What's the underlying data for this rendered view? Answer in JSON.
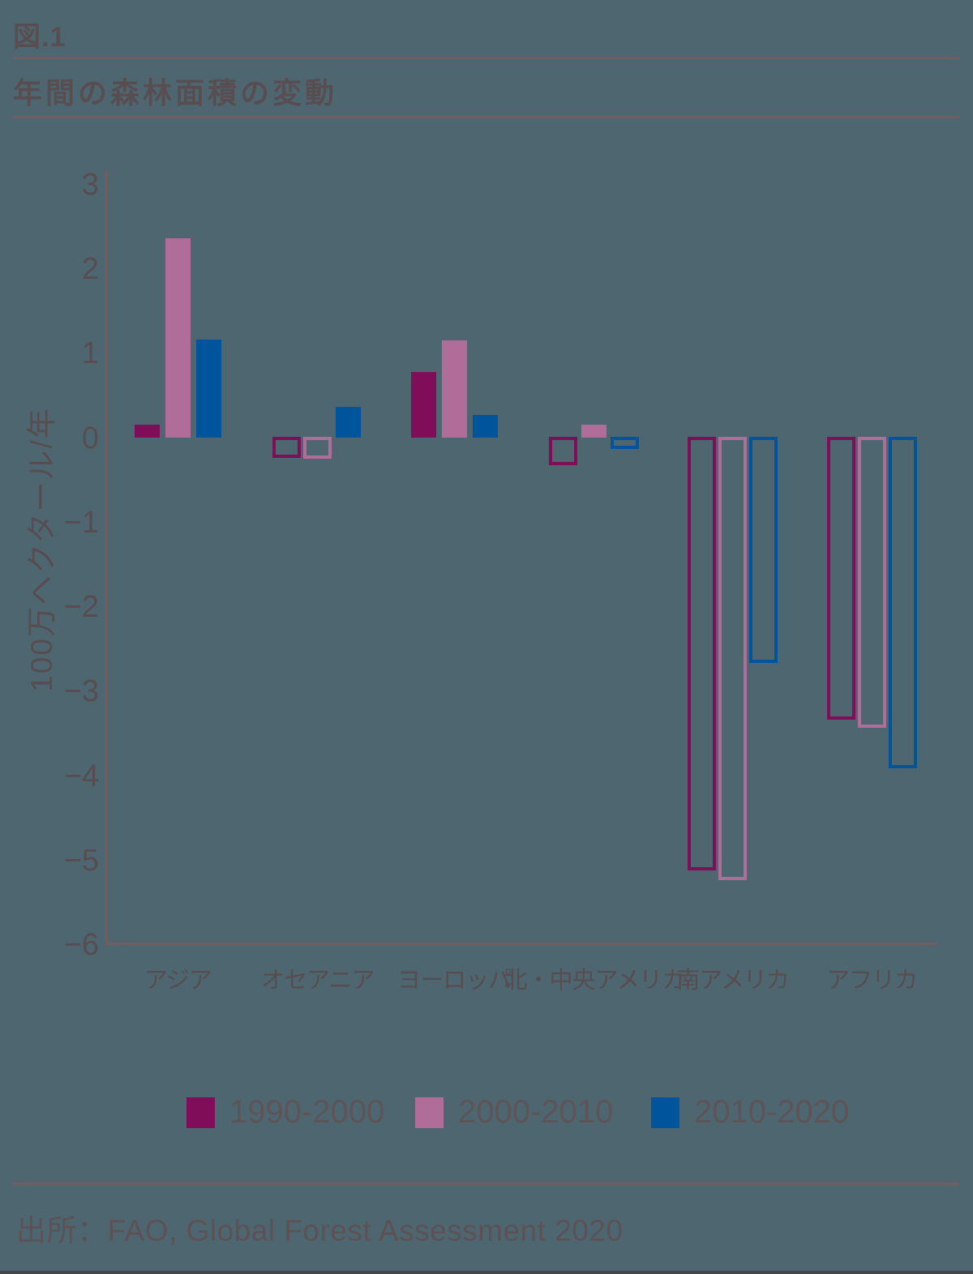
{
  "header": {
    "figure_label": "図.1",
    "title": "年間の森林面積の変動"
  },
  "source": {
    "text": "出所：FAO, Global Forest Assessment 2020"
  },
  "colors": {
    "background": "#4d6670",
    "text": "#574d50",
    "rule": "#6e5f63",
    "axis": "#6d5e61",
    "legend_text": "#5e5356",
    "series_1990_2000": "#7f0d57",
    "series_2000_2010": "#b06d99",
    "series_2010_2020": "#00549b"
  },
  "chart_data": {
    "type": "bar",
    "title": "年間の森林面積の変動",
    "figure_label": "図.1",
    "ylabel": "100万ヘクタール/年",
    "xlabel": "",
    "categories": [
      "アジア",
      "オセアニア",
      "ヨーロッパ",
      "北・中央アメリカ",
      "南アメリカ",
      "アフリカ"
    ],
    "series": [
      {
        "name": "1990-2000",
        "color": "#7f0d57",
        "values": [
          0.16,
          -0.22,
          0.78,
          -0.3,
          -5.1,
          -3.31
        ]
      },
      {
        "name": "2000-2010",
        "color": "#b06d99",
        "values": [
          2.36,
          -0.23,
          1.16,
          0.16,
          -5.21,
          -3.41
        ]
      },
      {
        "name": "2010-2020",
        "color": "#00549b",
        "values": [
          1.17,
          0.37,
          0.27,
          -0.11,
          -2.64,
          -3.89
        ]
      }
    ],
    "ylim": [
      -6,
      3
    ],
    "yticks": [
      3,
      2,
      1,
      0,
      -1,
      -2,
      -3,
      -4,
      -5,
      -6
    ],
    "grid": false,
    "legend_position": "bottom",
    "bar_style": "positive values drawn as solid filled bars; negative values drawn as hollow outlined bars",
    "source": "出所：FAO, Global Forest Assessment 2020"
  }
}
